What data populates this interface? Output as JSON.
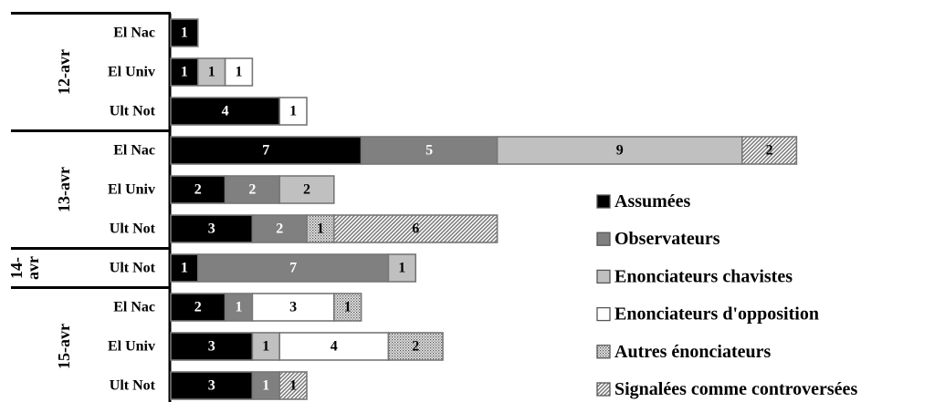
{
  "chart_data": {
    "type": "bar",
    "orientation": "horizontal",
    "stacked": true,
    "title": "",
    "xlabel": "",
    "ylabel": "",
    "xlim": [
      0,
      23
    ],
    "grid": false,
    "legend_position": "bottom-right",
    "groups": [
      {
        "label": "12-avr",
        "rows": [
          "El Nac",
          "El Univ",
          "Ult Not"
        ]
      },
      {
        "label": "13-avr",
        "rows": [
          "El Nac",
          "El Univ",
          "Ult Not"
        ]
      },
      {
        "label": "14-avr",
        "label_lines": [
          "14-",
          "avr"
        ],
        "rows": [
          "Ult Not"
        ]
      },
      {
        "label": "15-avr",
        "rows": [
          "El Nac",
          "El Univ",
          "Ult Not"
        ]
      }
    ],
    "categories": [
      "12-avr El Nac",
      "12-avr El Univ",
      "12-avr Ult Not",
      "13-avr El Nac",
      "13-avr El Univ",
      "13-avr Ult Not",
      "14-avr Ult Not",
      "15-avr El Nac",
      "15-avr El Univ",
      "15-avr Ult Not"
    ],
    "series": [
      {
        "name": "Assumées",
        "color": "#000000",
        "pattern": "solid",
        "label_color": "#ffffff",
        "values": [
          1,
          1,
          4,
          7,
          2,
          3,
          1,
          2,
          3,
          3
        ]
      },
      {
        "name": "Observateurs",
        "color": "#808080",
        "pattern": "solid",
        "label_color": "#ffffff",
        "values": [
          0,
          0,
          0,
          5,
          2,
          2,
          7,
          1,
          0,
          1
        ]
      },
      {
        "name": "Enonciateurs chavistes",
        "color": "#c0c0c0",
        "pattern": "solid",
        "label_color": "#000000",
        "values": [
          0,
          1,
          0,
          9,
          2,
          0,
          1,
          0,
          1,
          0
        ]
      },
      {
        "name": "Enonciateurs d'opposition",
        "color": "#ffffff",
        "pattern": "solid",
        "label_color": "#000000",
        "values": [
          0,
          1,
          1,
          0,
          0,
          0,
          0,
          3,
          4,
          0
        ]
      },
      {
        "name": "Autres énonciateurs",
        "color": "#d8d8d8",
        "pattern": "dots",
        "label_color": "#000000",
        "values": [
          0,
          0,
          0,
          0,
          0,
          1,
          0,
          1,
          2,
          0
        ]
      },
      {
        "name": "Signalées comme controversées",
        "color": "#bfbfbf",
        "pattern": "hatch",
        "label_color": "#000000",
        "values": [
          0,
          0,
          0,
          2,
          0,
          6,
          0,
          0,
          0,
          1
        ]
      }
    ]
  }
}
